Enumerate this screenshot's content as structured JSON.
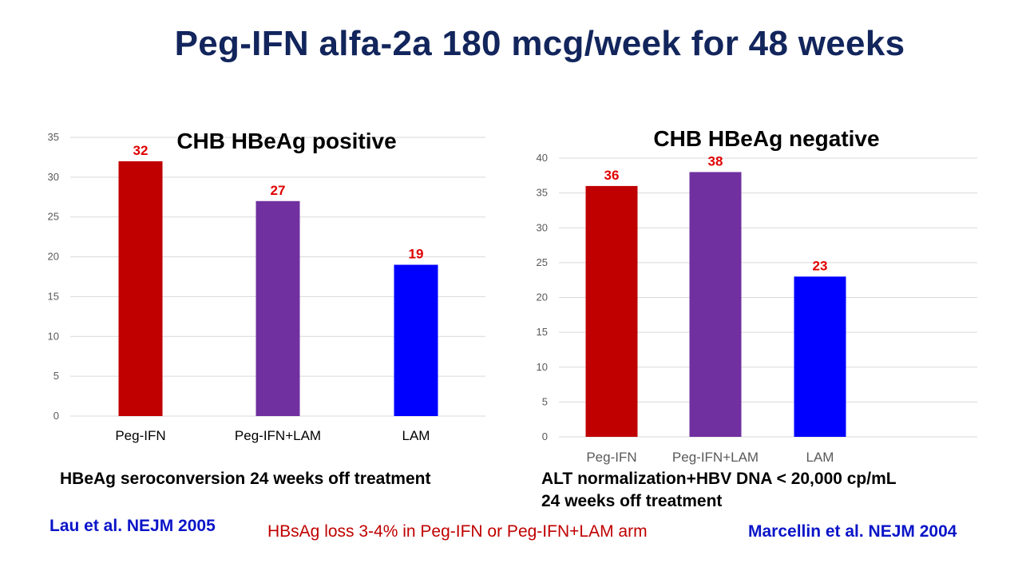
{
  "slide": {
    "title": "Peg-IFN alfa-2a 180 mcg/week for 48 weeks",
    "left_caption": "HBeAg seroconversion 24 weeks off treatment",
    "right_caption_line1": "ALT normalization+HBV DNA < 20,000 cp/mL",
    "right_caption_line2": "24 weeks off treatment",
    "ref_left": "Lau et al. NEJM 2005",
    "footnote": "HBsAg loss 3-4% in Peg-IFN or Peg-IFN+LAM arm",
    "ref_right": "Marcellin et al. NEJM 2004",
    "colors": {
      "title": "#12255c",
      "ref": "#0a14c8",
      "footnote": "#c00000",
      "label": "#e00000"
    }
  },
  "chart_data": [
    {
      "type": "bar",
      "title": "CHB HBeAg positive",
      "categories": [
        "Peg-IFN",
        "Peg-IFN+LAM",
        "LAM"
      ],
      "values": [
        32,
        27,
        19
      ],
      "bar_colors": [
        "#c00000",
        "#7030a0",
        "#0000ff"
      ],
      "ylim": [
        0,
        35
      ],
      "yticks": [
        0,
        5,
        10,
        15,
        20,
        25,
        30,
        35
      ],
      "grid": true,
      "data_labels": true
    },
    {
      "type": "bar",
      "title": "CHB HBeAg negative",
      "categories": [
        "Peg-IFN",
        "Peg-IFN+LAM",
        "LAM"
      ],
      "values": [
        36,
        38,
        23
      ],
      "bar_colors": [
        "#c00000",
        "#7030a0",
        "#0000ff"
      ],
      "ylim": [
        0,
        40
      ],
      "yticks": [
        0,
        5,
        10,
        15,
        20,
        25,
        30,
        35,
        40
      ],
      "grid": true,
      "data_labels": true
    }
  ]
}
